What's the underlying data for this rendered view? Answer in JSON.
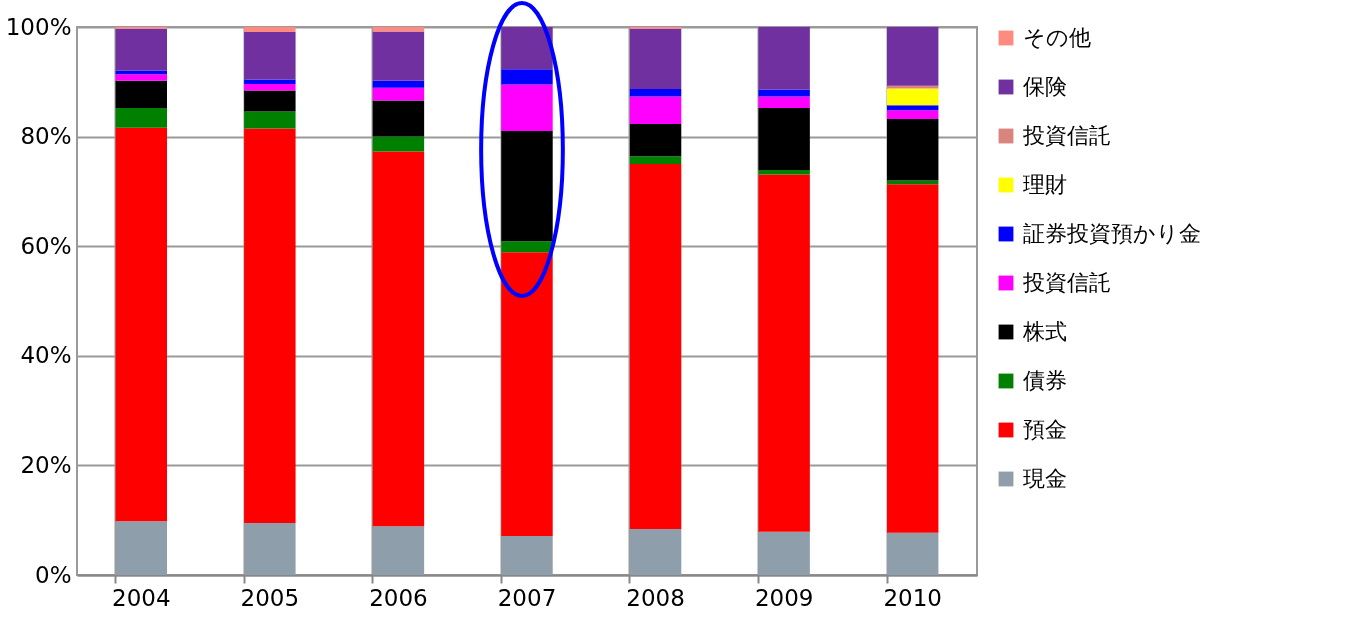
{
  "chart_data": {
    "type": "bar",
    "stacked": true,
    "categories": [
      "2004",
      "2005",
      "2006",
      "2007",
      "2008",
      "2009",
      "2010"
    ],
    "ylim": [
      0,
      100
    ],
    "yticks": [
      {
        "value": 0,
        "label": "0%"
      },
      {
        "value": 20,
        "label": "20%"
      },
      {
        "value": 40,
        "label": "40%"
      },
      {
        "value": 60,
        "label": "60%"
      },
      {
        "value": 80,
        "label": "80%"
      },
      {
        "value": 100,
        "label": "100%"
      }
    ],
    "grid": true,
    "legend": "right",
    "series": [
      {
        "name": "現金",
        "color": "#8f9eab",
        "values": [
          9.8,
          9.5,
          8.9,
          7.1,
          8.4,
          7.9,
          7.7
        ]
      },
      {
        "name": "預金",
        "color": "#ff0000",
        "values": [
          71.8,
          72.0,
          68.4,
          51.8,
          66.6,
          65.2,
          63.6
        ]
      },
      {
        "name": "債券",
        "color": "#008000",
        "values": [
          3.6,
          3.1,
          2.7,
          2.0,
          1.4,
          0.8,
          0.7
        ]
      },
      {
        "name": "株式",
        "color": "#000000",
        "values": [
          5.0,
          3.8,
          6.6,
          20.1,
          5.9,
          11.3,
          11.2
        ]
      },
      {
        "name": "投資信託",
        "color": "#ff00ff",
        "values": [
          1.2,
          1.2,
          2.3,
          8.5,
          5.0,
          2.1,
          1.6
        ]
      },
      {
        "name": "証券投資預かり金",
        "color": "#0000ff",
        "values": [
          0.6,
          0.8,
          1.3,
          2.8,
          1.4,
          1.3,
          0.9
        ]
      },
      {
        "name": "理財",
        "color": "#ffff00",
        "values": [
          0,
          0,
          0,
          0,
          0,
          0,
          3.1
        ]
      },
      {
        "name": "投資信託",
        "color": "#d9857d",
        "values": [
          0,
          0,
          0,
          0,
          0,
          0,
          0.5
        ]
      },
      {
        "name": "保険",
        "color": "#7030a0",
        "values": [
          7.7,
          8.7,
          9.0,
          7.7,
          11.0,
          11.4,
          10.7
        ]
      },
      {
        "name": "その他",
        "color": "#ff8a80",
        "values": [
          0.3,
          0.9,
          0.8,
          0,
          0.3,
          0,
          0
        ]
      }
    ]
  }
}
